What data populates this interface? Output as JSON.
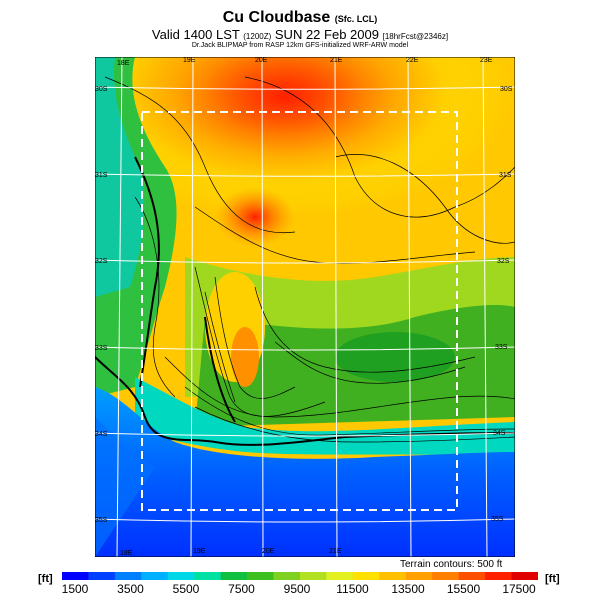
{
  "title": {
    "main": "Cu Cloudbase",
    "main_sub": "(Sfc. LCL)",
    "valid": "Valid 1400 LST",
    "valid_code": "(1200Z)",
    "date": "SUN 22 Feb 2009",
    "run": "[18hrFcst@2346z]",
    "credit": "Dr.Jack BLIPMAP from RASP 12km GFS-initialized WRF-ARW model"
  },
  "map": {
    "lon_labels": [
      "18E",
      "19E",
      "20E",
      "21E",
      "22E",
      "23E"
    ],
    "lat_labels": [
      "30S",
      "31S",
      "32S",
      "33S",
      "34S",
      "35S"
    ],
    "terrain_note": "Terrain contours: 500 ft"
  },
  "colorbar": {
    "unit": "[ft]",
    "ticks": [
      "1500",
      "3500",
      "5500",
      "7500",
      "9500",
      "11500",
      "13500",
      "15500",
      "17500"
    ],
    "colors": [
      "#0000ff",
      "#0040ff",
      "#0080ff",
      "#00b0ff",
      "#00d8e8",
      "#00e0a0",
      "#10c040",
      "#40c020",
      "#80d020",
      "#b0e020",
      "#e0f020",
      "#ffe000",
      "#ffc000",
      "#ffa000",
      "#ff8000",
      "#ff5000",
      "#ff2000",
      "#e00000"
    ]
  }
}
